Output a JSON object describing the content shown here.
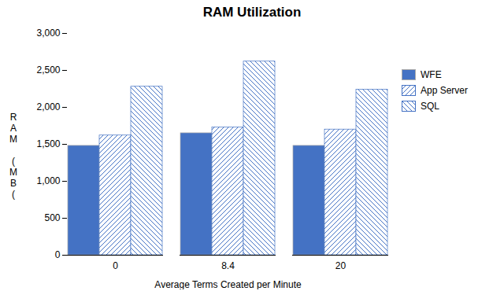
{
  "chart_data": {
    "type": "bar",
    "title": "RAM Utilization",
    "xlabel": "Average Terms Created per Minute",
    "ylabel": "R\nA\nM\n\n(\nM\nB\n(",
    "categories": [
      "0",
      "8.4",
      "20"
    ],
    "series": [
      {
        "name": "WFE",
        "color": "#4472c4",
        "values": [
          1480,
          1650,
          1480
        ]
      },
      {
        "name": "App Server",
        "color": "#4472c4",
        "values": [
          1620,
          1730,
          1700
        ]
      },
      {
        "name": "SQL",
        "color": "#4472c4",
        "values": [
          2280,
          2620,
          2240
        ]
      }
    ],
    "ylim": [
      0,
      3000
    ],
    "yticks": [
      0,
      500,
      {
        "value": 1000,
        "label": "1,000"
      },
      {
        "value": 1500,
        "label": "1,500"
      },
      {
        "value": 2000,
        "label": "2,000"
      },
      {
        "value": 2500,
        "label": "2,500"
      },
      {
        "value": 3000,
        "label": "3,000"
      }
    ],
    "grid": false,
    "legend": "right"
  }
}
